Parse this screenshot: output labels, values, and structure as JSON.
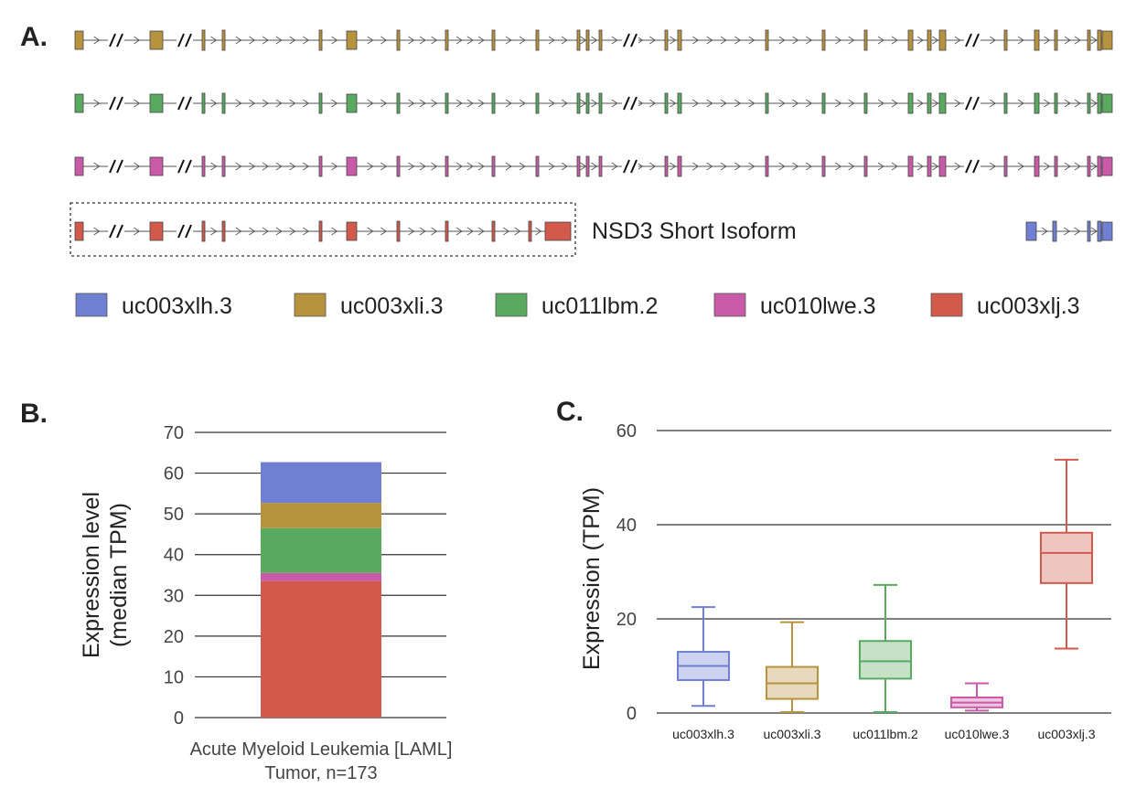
{
  "panels": {
    "a_label": "A.",
    "b_label": "B.",
    "c_label": "C."
  },
  "colors": {
    "uc003xlh.3": "#6f7fd1",
    "uc003xli.3": "#b8933f",
    "uc011lbm.2": "#5aa960",
    "uc010lwe.3": "#c95aa8",
    "uc003xlj.3": "#d15a4c"
  },
  "isoform_panel": {
    "short_isoform_label": "NSD3 Short Isoform",
    "legend": [
      "uc003xlh.3",
      "uc003xli.3",
      "uc011lbm.2",
      "uc010lwe.3",
      "uc003xlj.3"
    ]
  },
  "chart_data": [
    {
      "type": "bar",
      "stacked": true,
      "categories": [
        "Acute Myeloid Leukemia [LAML]"
      ],
      "category_sublabel": "Tumor, n=173",
      "ylabel_line1": "Expression level",
      "ylabel_line2": "(median TPM)",
      "ylim": [
        0,
        70
      ],
      "yticks": [
        0,
        10,
        20,
        30,
        40,
        50,
        60,
        70
      ],
      "grid": true,
      "series": [
        {
          "name": "uc003xlj.3",
          "values": [
            33.5
          ]
        },
        {
          "name": "uc010lwe.3",
          "values": [
            2.0
          ]
        },
        {
          "name": "uc011lbm.2",
          "values": [
            11.0
          ]
        },
        {
          "name": "uc003xli.3",
          "values": [
            6.2
          ]
        },
        {
          "name": "uc003xlh.3",
          "values": [
            10.0
          ]
        }
      ]
    },
    {
      "type": "box",
      "categories": [
        "uc003xlh.3",
        "uc003xli.3",
        "uc011lbm.2",
        "uc010lwe.3",
        "uc003xlj.3"
      ],
      "ylabel": "Expression (TPM)",
      "ylim": [
        0,
        60
      ],
      "yticks": [
        0,
        20,
        40,
        60
      ],
      "grid": true,
      "boxes": [
        {
          "name": "uc003xlh.3",
          "min": 1.5,
          "q1": 7.0,
          "median": 10.0,
          "q3": 13.0,
          "max": 22.5
        },
        {
          "name": "uc003xli.3",
          "min": 0.2,
          "q1": 3.0,
          "median": 6.3,
          "q3": 9.8,
          "max": 19.3
        },
        {
          "name": "uc011lbm.2",
          "min": 0.2,
          "q1": 7.3,
          "median": 11.0,
          "q3": 15.3,
          "max": 27.2
        },
        {
          "name": "uc010lwe.3",
          "min": 0.5,
          "q1": 1.2,
          "median": 2.2,
          "q3": 3.3,
          "max": 6.3
        },
        {
          "name": "uc003xlj.3",
          "min": 13.7,
          "q1": 27.6,
          "median": 34.0,
          "q3": 38.3,
          "max": 53.8
        }
      ]
    }
  ]
}
